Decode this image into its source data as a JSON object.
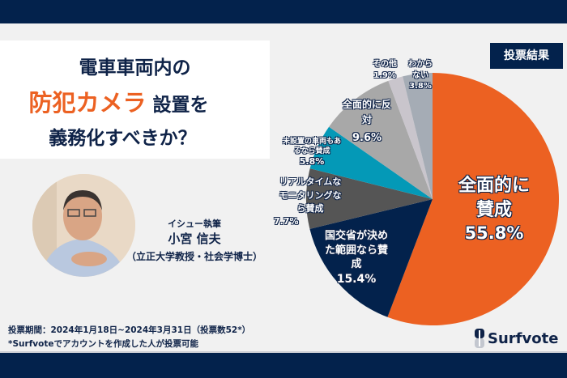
{
  "title": {
    "line1": "電車車両内の",
    "highlight": "防犯カメラ",
    "line2_rest": "設置を",
    "line3": "義務化すべきか？"
  },
  "author": {
    "role": "イシュー執筆",
    "name": "小宮 信夫",
    "affiliation": "（立正大学教授・社会学博士）"
  },
  "badge": "投票結果",
  "footer": {
    "period": "投票期間：2024年1月18日~2024年3月31日（投票数52*）",
    "note": "*Surfvoteでアカウントを作成した人が投票可能"
  },
  "logo": "Surfvote",
  "chart_data": {
    "type": "pie",
    "start": "top",
    "direction": "clockwise",
    "slices": [
      {
        "label": "全面的に賛成",
        "value": 55.8,
        "text": "55.8%",
        "color": "#ec6122"
      },
      {
        "label": "国交省が決めた範囲なら賛成",
        "value": 15.4,
        "text": "15.4%",
        "color": "#03224c"
      },
      {
        "label": "リアルタイムなモニタリングなら賛成",
        "value": 7.7,
        "text": "7.7%",
        "color": "#555555"
      },
      {
        "label": "未設置の車両もあるなら賛成",
        "value": 5.8,
        "text": "5.8%",
        "color": "#0499b7"
      },
      {
        "label": "全面的に反対",
        "value": 9.6,
        "text": "9.6%",
        "color": "#a8a8a8"
      },
      {
        "label": "その他",
        "value": 1.9,
        "text": "1.9%",
        "color": "#c9c5cc"
      },
      {
        "label": "わからない",
        "value": 3.8,
        "text": "3.8%",
        "color": "#a5acb5"
      }
    ]
  }
}
